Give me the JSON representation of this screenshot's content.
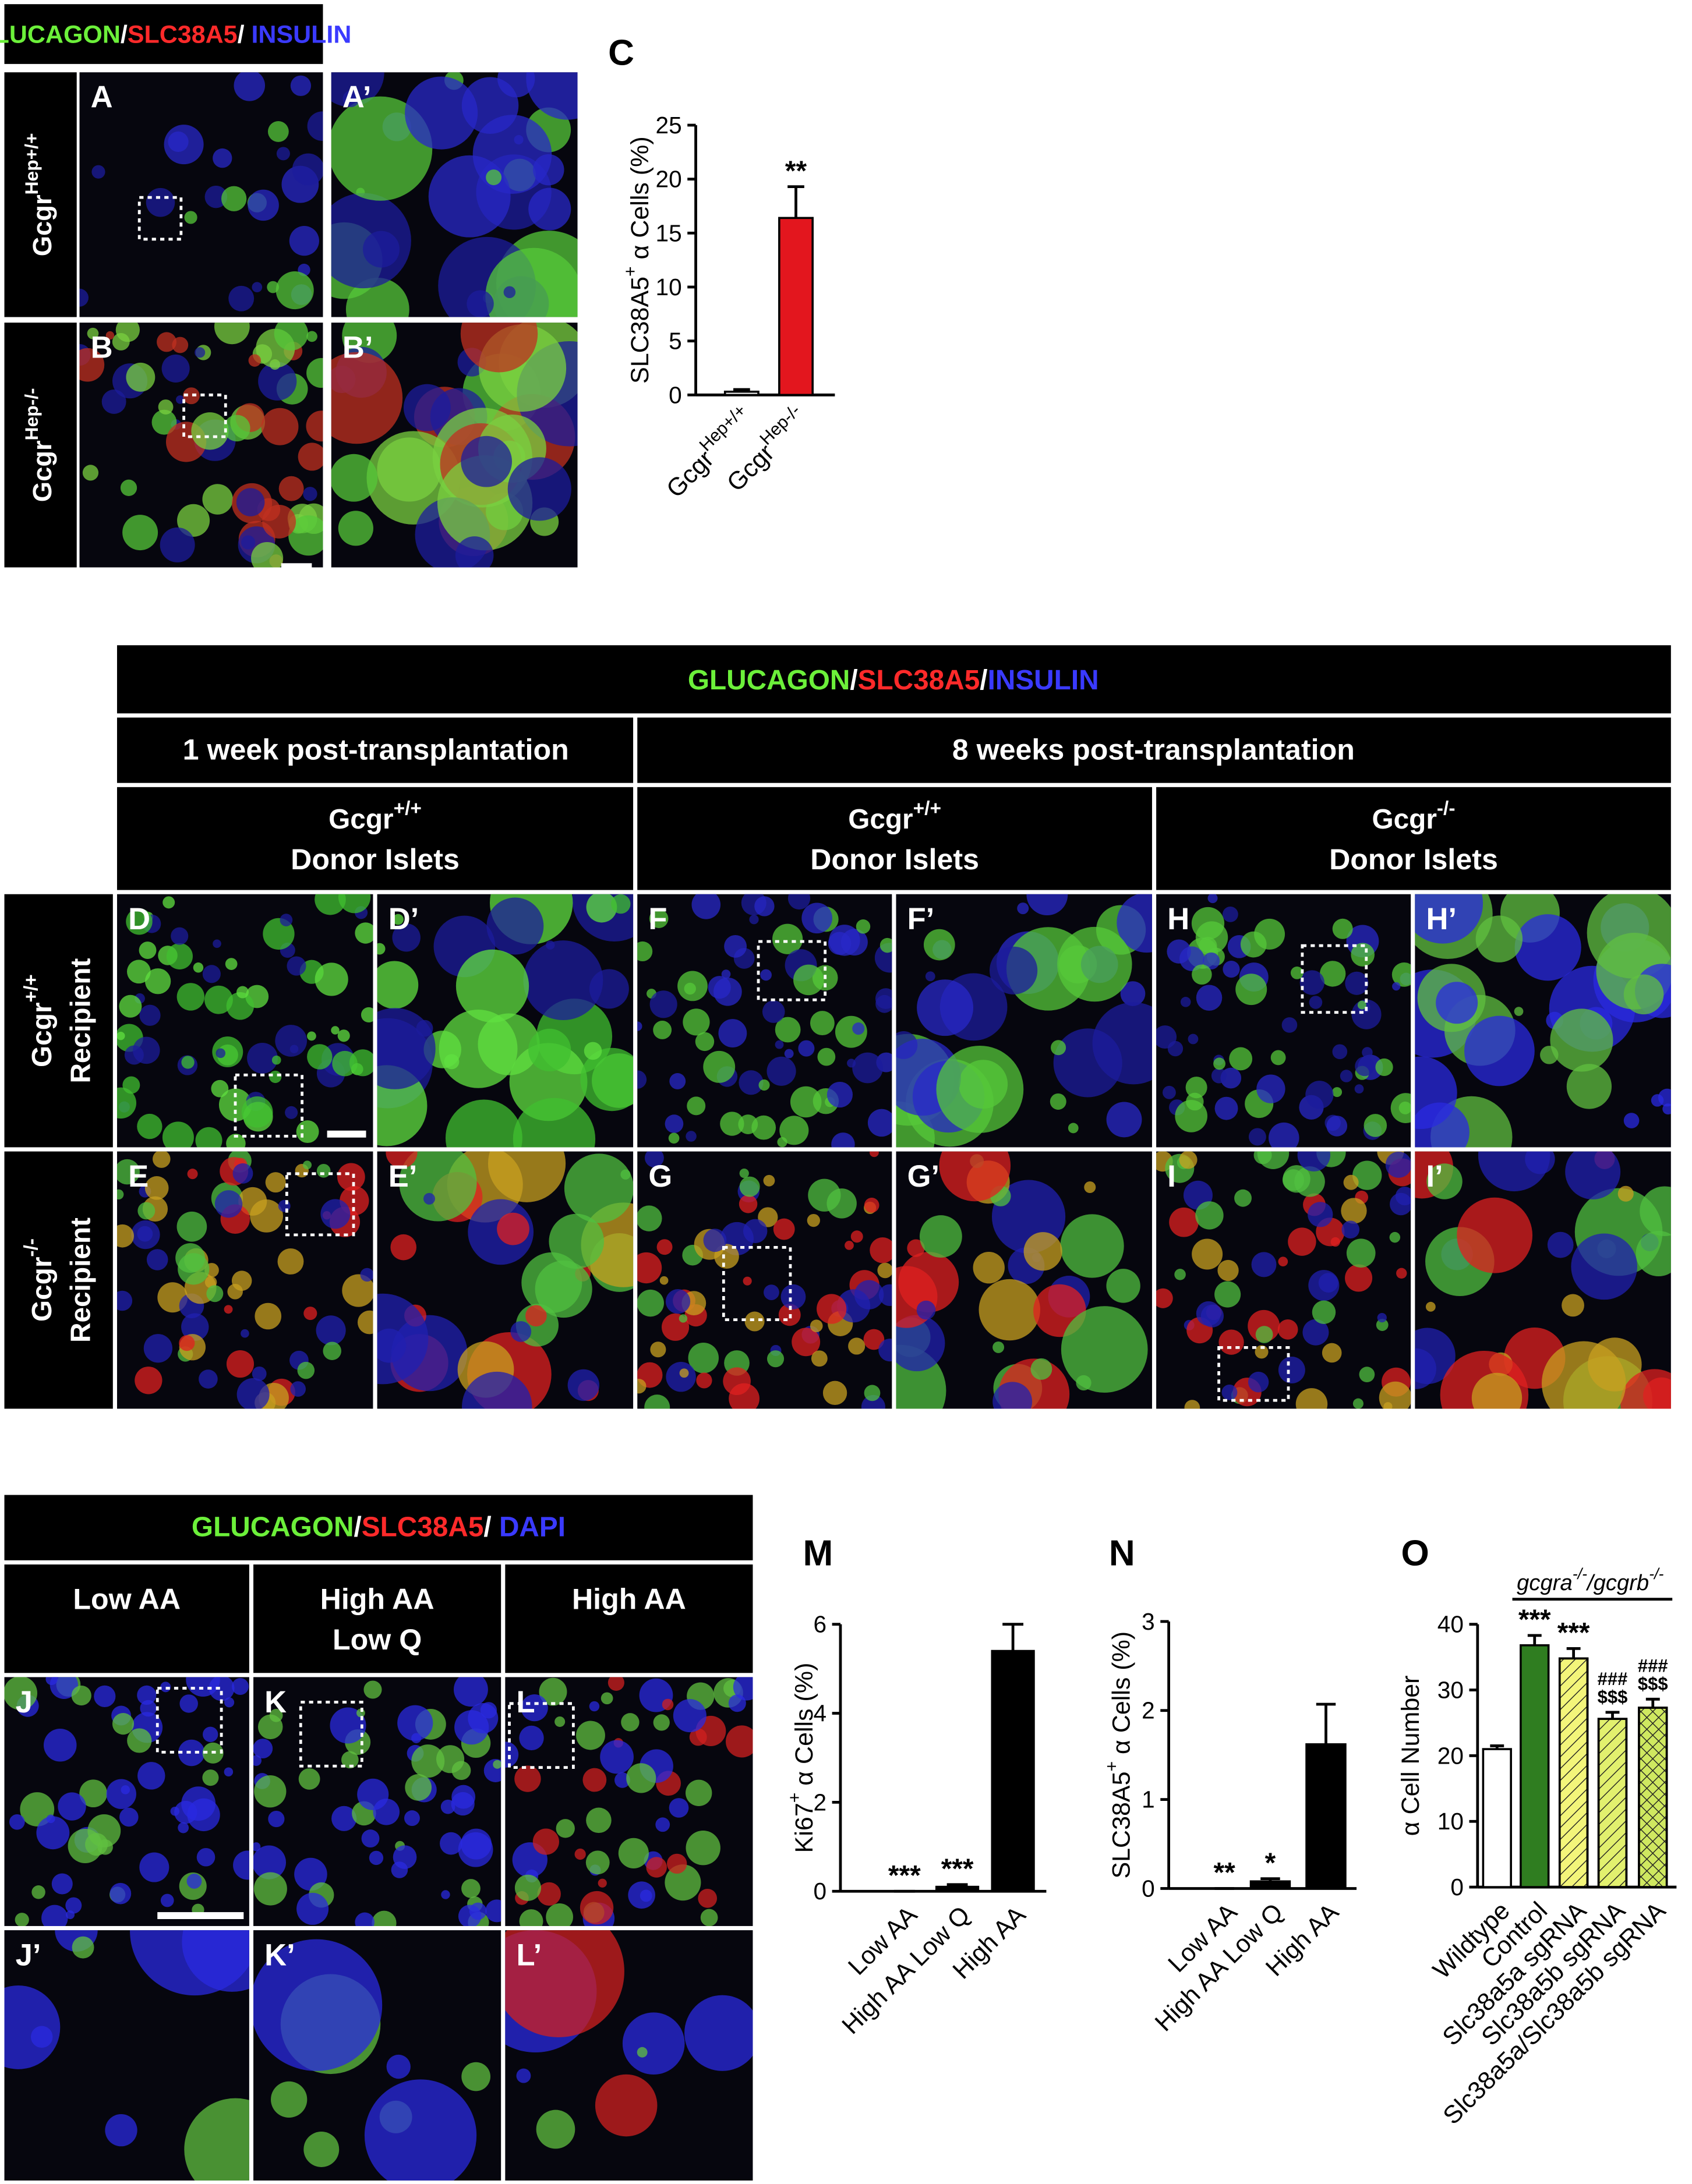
{
  "top": {
    "stain_parts": [
      "GLUCAGON",
      "/",
      "SLC38A5",
      "/ ",
      "INSULIN"
    ],
    "stain_colors": [
      "#6cf03a",
      "#ffffff",
      "#ff2a2a",
      "#ffffff",
      "#3a3aff"
    ],
    "row_labels": [
      {
        "base": "Gcgr",
        "sup": "Hep+/+"
      },
      {
        "base": "Gcgr",
        "sup": "Hep-/-"
      }
    ],
    "panel_letters": [
      [
        "A",
        "A’"
      ],
      [
        "B",
        "B’"
      ]
    ]
  },
  "transplant": {
    "stain_parts": [
      "GLUCAGON",
      "/",
      "SLC38A5",
      "/",
      "INSULIN"
    ],
    "stain_colors": [
      "#6cf03a",
      "#ffffff",
      "#ff2a2a",
      "#ffffff",
      "#3a3aff"
    ],
    "timepoints": [
      "1 week post-transplantation",
      "8 weeks post-transplantation"
    ],
    "donors": [
      {
        "base": "Gcgr",
        "sup": "+/+",
        "line2": "Donor Islets"
      },
      {
        "base": "Gcgr",
        "sup": "+/+",
        "line2": "Donor Islets"
      },
      {
        "base": "Gcgr",
        "sup": "-/-",
        "line2": "Donor Islets"
      }
    ],
    "recipients": [
      {
        "base": "Gcgr",
        "sup": "+/+",
        "line2": "Recipient"
      },
      {
        "base": "Gcgr",
        "sup": "-/-",
        "line2": "Recipient"
      }
    ],
    "panel_letters": [
      [
        "D",
        "D’",
        "F",
        "F’",
        "H",
        "H’"
      ],
      [
        "E",
        "E’",
        "G",
        "G’",
        "I",
        "I’"
      ]
    ]
  },
  "culture": {
    "stain_parts": [
      "GLUCAGON",
      "/",
      "SLC38A5",
      "/ ",
      "DAPI"
    ],
    "stain_colors": [
      "#6cf03a",
      "#ffffff",
      "#ff2a2a",
      "#ffffff",
      "#3a3aff"
    ],
    "conditions": [
      [
        "Low AA"
      ],
      [
        "High AA",
        "Low Q"
      ],
      [
        "High AA"
      ]
    ],
    "panel_letters": [
      [
        "J",
        "K",
        "L"
      ],
      [
        "J’",
        "K’",
        "L’"
      ]
    ]
  },
  "chart_data": [
    {
      "type": "bar",
      "panel_label": "C",
      "ylabel_parts": [
        "SLC38A5",
        "+",
        " α Cells (%)"
      ],
      "categories": [
        "Gcgr",
        "Gcgr"
      ],
      "category_sups": [
        "Hep+/+",
        "Hep-/-"
      ],
      "values": [
        0.3,
        16.4
      ],
      "errors": [
        0.2,
        2.9
      ],
      "colors": [
        "#ffffff",
        "#e3161e"
      ],
      "patterns": [
        "none",
        "none"
      ],
      "annotations": [
        [],
        [
          "**"
        ]
      ],
      "ylim": [
        0,
        25
      ],
      "yticks": [
        0,
        5,
        10,
        15,
        20,
        25
      ]
    },
    {
      "type": "bar",
      "panel_label": "M",
      "ylabel_parts": [
        "Ki67",
        "+",
        " α Cells (%)"
      ],
      "categories": [
        "Low AA",
        "High AA Low Q",
        "High AA"
      ],
      "values": [
        0,
        0.1,
        5.4
      ],
      "errors": [
        0,
        0.05,
        0.6
      ],
      "colors": [
        "#000000",
        "#000000",
        "#000000"
      ],
      "patterns": [
        "none",
        "none",
        "none"
      ],
      "annotations": [
        [
          "***"
        ],
        [
          "***"
        ],
        []
      ],
      "ylim": [
        0,
        6
      ],
      "yticks": [
        0,
        2,
        4,
        6
      ]
    },
    {
      "type": "bar",
      "panel_label": "N",
      "ylabel_parts": [
        "SLC38A5",
        "+",
        " α Cells (%)"
      ],
      "categories": [
        "Low AA",
        "High AA Low Q",
        "High AA"
      ],
      "values": [
        0,
        0.08,
        1.62
      ],
      "errors": [
        0,
        0.03,
        0.45
      ],
      "colors": [
        "#000000",
        "#000000",
        "#000000"
      ],
      "patterns": [
        "none",
        "none",
        "none"
      ],
      "annotations": [
        [
          "**"
        ],
        [
          "*"
        ],
        []
      ],
      "ylim": [
        0,
        3
      ],
      "yticks": [
        0,
        1,
        2,
        3
      ]
    },
    {
      "type": "bar",
      "panel_label": "O",
      "ylabel_parts": [
        "α Cell Number"
      ],
      "group_label_parts": [
        "gcgra",
        "-/-",
        "/gcgrb",
        "-/-"
      ],
      "categories": [
        "Wildtype",
        "Control",
        "Slc38a5a sgRNA",
        "Slc38a5b sgRNA",
        "Slc38a5a/Slc38a5b sgRNA"
      ],
      "values": [
        21,
        36.8,
        34.8,
        25.6,
        27.3
      ],
      "errors": [
        0.5,
        1.5,
        1.5,
        1,
        1.3
      ],
      "colors": [
        "#ffffff",
        "#2f7d20",
        "#f3f57a",
        "#e2f06e",
        "#cfe860"
      ],
      "patterns": [
        "none",
        "none",
        "diag",
        "diag",
        "cross"
      ],
      "annotations": [
        [],
        [
          "***"
        ],
        [
          "***"
        ],
        [
          "###",
          "$$$"
        ],
        [
          "###",
          "$$$"
        ]
      ],
      "ylim": [
        0,
        40
      ],
      "yticks": [
        0,
        10,
        20,
        30,
        40
      ]
    }
  ]
}
